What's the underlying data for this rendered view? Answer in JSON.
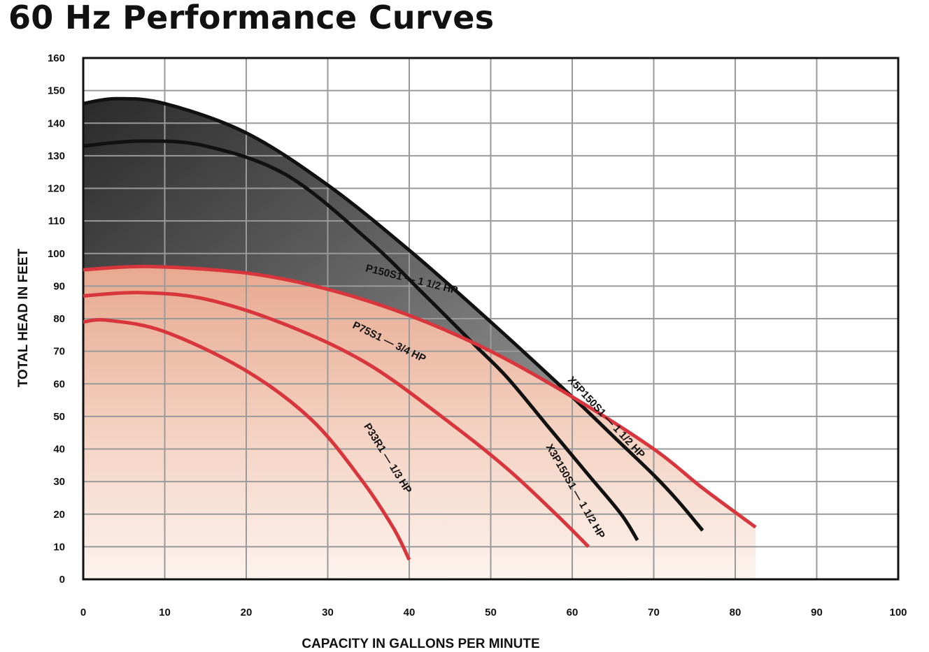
{
  "title": "60 Hz Performance Curves",
  "chart_data": {
    "type": "line",
    "title": "60 Hz Performance Curves",
    "xlabel": "CAPACITY IN GALLONS PER MINUTE",
    "ylabel": "TOTAL HEAD IN FEET",
    "xlim": [
      0,
      100
    ],
    "ylim": [
      0,
      160
    ],
    "xticks": [
      "0",
      "10",
      "20",
      "30",
      "40",
      "50",
      "60",
      "70",
      "80",
      "90",
      "100"
    ],
    "yticks": [
      "0",
      "10",
      "20",
      "30",
      "40",
      "50",
      "60",
      "70",
      "80",
      "90",
      "100",
      "110",
      "120",
      "130",
      "140",
      "150",
      "160"
    ],
    "grid": true,
    "series": [
      {
        "name": "X5P150S1 — 1 1/2 HP",
        "label": "X5P150S1 — 1 1/2 HP",
        "color": "#111111",
        "group": "dark",
        "x": [
          0,
          4,
          10,
          20,
          30,
          40,
          50,
          60,
          65,
          70,
          73,
          76
        ],
        "y": [
          146,
          147.5,
          146,
          137,
          121,
          101,
          79,
          56,
          44,
          32,
          24,
          15
        ]
      },
      {
        "name": "X3P150S1 — 1 1/2 HP",
        "label": "X3P150S1 — 1 1/2 HP",
        "color": "#111111",
        "group": "dark",
        "x": [
          0,
          7,
          15,
          25,
          35,
          42,
          48,
          52,
          57,
          62,
          66,
          68
        ],
        "y": [
          133,
          134.5,
          133,
          124,
          104,
          87,
          72,
          62,
          47,
          32,
          20,
          12
        ]
      },
      {
        "name": "P150S1 — 1 1/2 HP",
        "label": "P150S1 — 1 1/2 HP",
        "color": "#d8363c",
        "group": "red",
        "x": [
          0,
          8,
          20,
          30,
          40,
          50,
          60,
          70,
          76,
          82.5
        ],
        "y": [
          95,
          96,
          94,
          89,
          81,
          70,
          56,
          40,
          28,
          16
        ]
      },
      {
        "name": "P75S1 — 3/4 HP",
        "label": "P75S1 — 3/4 HP",
        "color": "#d8363c",
        "group": "red",
        "x": [
          0,
          7,
          15,
          25,
          35,
          45,
          52,
          58,
          62
        ],
        "y": [
          87,
          88,
          86,
          78,
          66,
          48,
          34,
          20,
          10
        ]
      },
      {
        "name": "P33R1 — 1/3 HP",
        "label": "P33R1 — 1/3 HP",
        "color": "#d8363c",
        "group": "red",
        "x": [
          0,
          3,
          10,
          20,
          28,
          34,
          38,
          40
        ],
        "y": [
          79,
          79.5,
          76,
          64,
          49,
          31,
          16,
          6
        ]
      }
    ]
  }
}
